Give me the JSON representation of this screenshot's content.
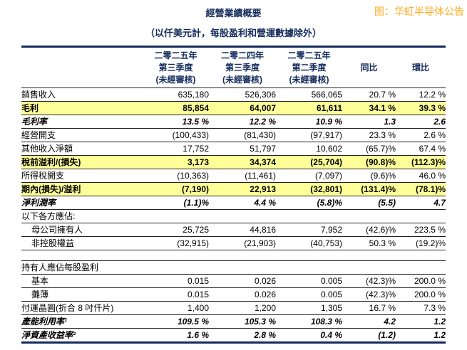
{
  "header": {
    "title": "經營業績概要",
    "subtitle": "（以仟美元計，每股盈利和營運數據除外）",
    "source_note": "图：华虹半导体公告"
  },
  "colors": {
    "navy_text_and_borders": "#132B5C",
    "source_note_orange": "#FFAB1E",
    "highlight_yellow": "#FFFF99"
  },
  "table": {
    "columns": [
      {
        "lines": [
          "二零二五年",
          "第三季度",
          "(未經審核)"
        ]
      },
      {
        "lines": [
          "二零二四年",
          "第三季度",
          "(未經審核)"
        ]
      },
      {
        "lines": [
          "二零二五年",
          "第二季度",
          "(未經審核)"
        ]
      },
      {
        "lines": [
          "",
          "同比",
          ""
        ]
      },
      {
        "lines": [
          "",
          "環比",
          ""
        ]
      }
    ],
    "rows": [
      {
        "label": "銷售收入",
        "style": "normal",
        "values": [
          "635,180",
          "526,306",
          "566,065",
          "20.7 %",
          "12.2 %"
        ]
      },
      {
        "label": "毛利",
        "style": "highlight",
        "values": [
          "85,854",
          "64,007",
          "61,611",
          "34.1 %",
          "39.3 %"
        ]
      },
      {
        "label": "毛利率",
        "style": "ratio",
        "values": [
          "13.5 %",
          "12.2 %",
          "10.9 %",
          "1.3",
          "2.6"
        ]
      },
      {
        "label": "經營開支",
        "style": "normal",
        "values": [
          "(100,433)",
          "(81,430)",
          "(97,917)",
          "23.3 %",
          "2.6 %"
        ]
      },
      {
        "label": "其他收入淨額",
        "style": "normal",
        "values": [
          "17,752",
          "51,797",
          "10,602",
          "(65.7)%",
          "67.4 %"
        ]
      },
      {
        "label": "稅前溢利/(損失)",
        "style": "highlight",
        "values": [
          "3,173",
          "34,374",
          "(25,704)",
          "(90.8)%",
          "(112.3)%"
        ]
      },
      {
        "label": "所得稅開支",
        "style": "normal",
        "values": [
          "(10,363)",
          "(11,461)",
          "(7,097)",
          "(9.6)%",
          "46.0 %"
        ]
      },
      {
        "label": "期內(損失)/溢利",
        "style": "highlight",
        "values": [
          "(7,190)",
          "22,913",
          "(32,801)",
          "(131.4)%",
          "(78.1)%"
        ]
      },
      {
        "label": "淨利潤率",
        "style": "ratio",
        "values": [
          "(1.1)%",
          "4.4 %",
          "(5.8)%",
          "(5.5)",
          "4.7"
        ]
      },
      {
        "label": "以下各方應佔:",
        "style": "normal",
        "values": [
          "",
          "",
          "",
          "",
          ""
        ]
      },
      {
        "label": "母公司擁有人",
        "style": "normal",
        "indent": true,
        "values": [
          "25,725",
          "44,816",
          "7,952",
          "(42.6)%",
          "223.5 %"
        ]
      },
      {
        "label": "非控股權益",
        "style": "normal",
        "indent": true,
        "values": [
          "(32,915)",
          "(21,903)",
          "(40,753)",
          "50.3 %",
          "(19.2)%"
        ]
      },
      {
        "style": "gap"
      },
      {
        "label": "持有人應佔每股盈利",
        "style": "normal",
        "values": [
          "",
          "",
          "",
          "",
          ""
        ]
      },
      {
        "label": "基本",
        "style": "normal",
        "indent": true,
        "values": [
          "0.015",
          "0.026",
          "0.005",
          "(42.3)%",
          "200.0 %"
        ]
      },
      {
        "label": "攤薄",
        "style": "normal",
        "indent": true,
        "values": [
          "0.015",
          "0.026",
          "0.005",
          "(42.3)%",
          "200.0 %"
        ]
      },
      {
        "label": "付運晶圓(折合 8 吋仟片)",
        "style": "normal",
        "values": [
          "1,400",
          "1,200",
          "1,305",
          "16.7 %",
          "7.3 %"
        ]
      },
      {
        "label": "產能利用率¹",
        "style": "ratio",
        "values": [
          "109.5 %",
          "105.3 %",
          "108.3 %",
          "4.2",
          "1.2"
        ]
      },
      {
        "label": "淨資產收益率²",
        "style": "ratio",
        "values": [
          "1.6 %",
          "2.8 %",
          "0.4 %",
          "(1.2)",
          "1.2"
        ]
      }
    ]
  }
}
